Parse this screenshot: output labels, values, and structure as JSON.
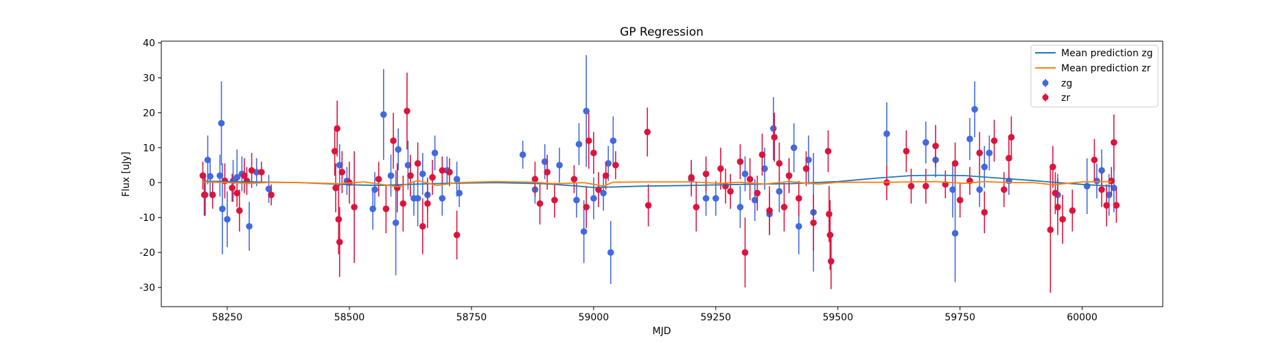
{
  "chart_data": {
    "type": "scatter",
    "title": "GP Regression",
    "xlabel": "MJD",
    "ylabel": "Flux [uJy]",
    "xlim": [
      58115,
      60165
    ],
    "ylim": [
      -35.5,
      40.5
    ],
    "xticks": [
      58250,
      58500,
      58750,
      59000,
      59250,
      59500,
      59750,
      60000
    ],
    "yticks": [
      -30,
      -20,
      -10,
      0,
      10,
      20,
      30,
      40
    ],
    "grid": false,
    "legend_position": "top-right",
    "legend": [
      "Mean prediction zg",
      "Mean prediction zr",
      "zg",
      "zr"
    ],
    "colors": {
      "mean_zg": "#1f77b4",
      "mean_zr": "#ff7f0e",
      "zg": "#4169e1",
      "zr": "#dc143c"
    },
    "lines": [
      {
        "name": "Mean prediction zg",
        "points": [
          [
            58200,
            0.4
          ],
          [
            58300,
            0.2
          ],
          [
            58400,
            0.0
          ],
          [
            58500,
            -0.6
          ],
          [
            58560,
            -0.8
          ],
          [
            58620,
            -0.5
          ],
          [
            58700,
            -0.2
          ],
          [
            58800,
            0.0
          ],
          [
            58900,
            -0.3
          ],
          [
            58960,
            -0.9
          ],
          [
            59000,
            -1.4
          ],
          [
            59100,
            -1.0
          ],
          [
            59200,
            -0.8
          ],
          [
            59300,
            -0.5
          ],
          [
            59400,
            -0.3
          ],
          [
            59500,
            0.3
          ],
          [
            59580,
            1.3
          ],
          [
            59650,
            2.0
          ],
          [
            59700,
            2.1
          ],
          [
            59760,
            2.0
          ],
          [
            59820,
            1.4
          ],
          [
            59900,
            0.6
          ],
          [
            59950,
            0.0
          ],
          [
            60000,
            -0.5
          ],
          [
            60060,
            -1.0
          ]
        ]
      },
      {
        "name": "Mean prediction zr",
        "points": [
          [
            58200,
            0.2
          ],
          [
            58250,
            0.0
          ],
          [
            58300,
            -0.2
          ],
          [
            58340,
            0.1
          ],
          [
            58400,
            0.0
          ],
          [
            58480,
            -0.3
          ],
          [
            58530,
            0.2
          ],
          [
            58600,
            -1.2
          ],
          [
            58640,
            0.6
          ],
          [
            58680,
            -0.8
          ],
          [
            58720,
            0.0
          ],
          [
            58800,
            0.3
          ],
          [
            58880,
            0.1
          ],
          [
            58920,
            -0.3
          ],
          [
            58980,
            0.0
          ],
          [
            59020,
            -1.0
          ],
          [
            59040,
            0.1
          ],
          [
            59100,
            0.2
          ],
          [
            59200,
            0.2
          ],
          [
            59260,
            -0.2
          ],
          [
            59300,
            0.1
          ],
          [
            59350,
            -0.4
          ],
          [
            59400,
            0.3
          ],
          [
            59460,
            -0.4
          ],
          [
            59500,
            0.1
          ],
          [
            59600,
            0.1
          ],
          [
            59700,
            0.3
          ],
          [
            59760,
            -0.2
          ],
          [
            59800,
            0.3
          ],
          [
            59850,
            0.0
          ],
          [
            59900,
            0.0
          ],
          [
            59940,
            -0.6
          ],
          [
            60000,
            0.2
          ],
          [
            60060,
            0.3
          ]
        ]
      }
    ],
    "series": [
      {
        "name": "zg",
        "points": [
          [
            58205,
            -3.5,
            6.0
          ],
          [
            58210,
            6.5,
            7.0
          ],
          [
            58215,
            1.8,
            5.0
          ],
          [
            58235,
            2.0,
            6.0
          ],
          [
            58238,
            17.0,
            12.0
          ],
          [
            58240,
            -7.5,
            13.0
          ],
          [
            58250,
            -10.5,
            8.0
          ],
          [
            58262,
            0.5,
            6.0
          ],
          [
            58270,
            1.5,
            8.0
          ],
          [
            58280,
            2.5,
            5.0
          ],
          [
            58295,
            -12.5,
            7.0
          ],
          [
            58310,
            3.0,
            4.0
          ],
          [
            58335,
            -1.8,
            4.0
          ],
          [
            58480,
            5.0,
            6.0
          ],
          [
            58495,
            0.5,
            4.0
          ],
          [
            58548,
            -7.5,
            6.0
          ],
          [
            58552,
            -2.0,
            5.0
          ],
          [
            58570,
            19.5,
            13.0
          ],
          [
            58585,
            2.0,
            6.0
          ],
          [
            58595,
            -11.5,
            15.0
          ],
          [
            58600,
            9.5,
            6.0
          ],
          [
            58620,
            5.0,
            7.0
          ],
          [
            58632,
            -4.5,
            5.0
          ],
          [
            58640,
            -4.5,
            8.0
          ],
          [
            58650,
            2.5,
            6.0
          ],
          [
            58660,
            -3.5,
            5.0
          ],
          [
            58675,
            8.5,
            5.0
          ],
          [
            58690,
            -4.5,
            5.0
          ],
          [
            58700,
            3.5,
            4.0
          ],
          [
            58720,
            1.0,
            5.0
          ],
          [
            58725,
            -3.0,
            4.0
          ],
          [
            58855,
            8.0,
            4.0
          ],
          [
            58880,
            -2.0,
            4.0
          ],
          [
            58900,
            6.0,
            5.0
          ],
          [
            58930,
            5.0,
            5.0
          ],
          [
            58965,
            -5.0,
            5.0
          ],
          [
            58970,
            11.0,
            6.0
          ],
          [
            58980,
            -14.0,
            9.0
          ],
          [
            58985,
            20.5,
            16.0
          ],
          [
            59000,
            -4.5,
            6.0
          ],
          [
            59020,
            -3.0,
            5.0
          ],
          [
            59030,
            5.5,
            5.0
          ],
          [
            59035,
            -20.0,
            9.0
          ],
          [
            59040,
            12.0,
            7.0
          ],
          [
            59200,
            1.0,
            5.0
          ],
          [
            59230,
            -4.5,
            5.0
          ],
          [
            59250,
            -4.5,
            5.0
          ],
          [
            59300,
            -7.0,
            6.0
          ],
          [
            59310,
            2.5,
            5.0
          ],
          [
            59330,
            -5.0,
            6.0
          ],
          [
            59350,
            4.0,
            6.0
          ],
          [
            59360,
            -9.0,
            6.0
          ],
          [
            59368,
            15.5,
            9.0
          ],
          [
            59380,
            -2.5,
            6.0
          ],
          [
            59400,
            2.0,
            5.0
          ],
          [
            59410,
            10.0,
            7.0
          ],
          [
            59420,
            -12.5,
            8.0
          ],
          [
            59440,
            6.5,
            7.0
          ],
          [
            59450,
            -8.5,
            17.0
          ],
          [
            59600,
            14.0,
            9.0
          ],
          [
            59680,
            11.5,
            6.0
          ],
          [
            59700,
            6.5,
            5.0
          ],
          [
            59735,
            -2.0,
            8.0
          ],
          [
            59740,
            -14.5,
            14.0
          ],
          [
            59770,
            12.5,
            6.0
          ],
          [
            59780,
            21.0,
            8.0
          ],
          [
            59790,
            -2.0,
            5.0
          ],
          [
            59800,
            4.5,
            6.0
          ],
          [
            59810,
            8.5,
            5.0
          ],
          [
            59850,
            0.5,
            4.0
          ],
          [
            59950,
            -3.5,
            6.0
          ],
          [
            60010,
            -1.0,
            8.0
          ],
          [
            60030,
            0.5,
            5.0
          ],
          [
            60040,
            3.5,
            6.0
          ],
          [
            60055,
            -3.5,
            6.0
          ],
          [
            60065,
            -1.5,
            7.0
          ]
        ]
      },
      {
        "name": "zr",
        "points": [
          [
            58200,
            2.0,
            4.0
          ],
          [
            58203,
            -3.5,
            6.0
          ],
          [
            58220,
            -3.5,
            4.0
          ],
          [
            58245,
            0.5,
            5.0
          ],
          [
            58260,
            -1.5,
            4.0
          ],
          [
            58270,
            -3.0,
            4.0
          ],
          [
            58275,
            -8.0,
            6.0
          ],
          [
            58285,
            2.0,
            5.0
          ],
          [
            58290,
            0.5,
            4.0
          ],
          [
            58300,
            3.5,
            5.0
          ],
          [
            58320,
            3.0,
            3.0
          ],
          [
            58340,
            -3.5,
            3.0
          ],
          [
            58470,
            9.0,
            7.0
          ],
          [
            58472,
            -1.5,
            7.0
          ],
          [
            58475,
            15.5,
            8.0
          ],
          [
            58478,
            -10.5,
            10.0
          ],
          [
            58480,
            -17.0,
            10.0
          ],
          [
            58485,
            3.0,
            6.0
          ],
          [
            58500,
            0.0,
            6.0
          ],
          [
            58510,
            -7.0,
            16.0
          ],
          [
            58560,
            1.0,
            5.0
          ],
          [
            58575,
            -7.5,
            7.0
          ],
          [
            58590,
            12.0,
            8.0
          ],
          [
            58598,
            -1.5,
            7.0
          ],
          [
            58610,
            -6.0,
            8.0
          ],
          [
            58618,
            20.5,
            11.0
          ],
          [
            58625,
            2.0,
            6.0
          ],
          [
            58640,
            5.5,
            6.0
          ],
          [
            58650,
            -12.5,
            8.0
          ],
          [
            58660,
            -6.0,
            7.0
          ],
          [
            58670,
            1.5,
            5.0
          ],
          [
            58690,
            3.5,
            4.0
          ],
          [
            58705,
            3.0,
            4.0
          ],
          [
            58720,
            -15.0,
            7.0
          ],
          [
            58880,
            1.0,
            5.0
          ],
          [
            58890,
            -6.0,
            6.0
          ],
          [
            58905,
            3.0,
            5.0
          ],
          [
            58920,
            -5.0,
            5.0
          ],
          [
            58960,
            1.0,
            4.0
          ],
          [
            58985,
            -7.0,
            6.0
          ],
          [
            58990,
            12.0,
            8.0
          ],
          [
            59000,
            8.5,
            6.0
          ],
          [
            59010,
            -2.0,
            5.0
          ],
          [
            59025,
            2.0,
            4.0
          ],
          [
            59045,
            5.0,
            4.0
          ],
          [
            59110,
            14.5,
            7.0
          ],
          [
            59112,
            -6.5,
            6.0
          ],
          [
            59200,
            1.5,
            5.0
          ],
          [
            59210,
            -7.0,
            7.0
          ],
          [
            59230,
            2.5,
            5.0
          ],
          [
            59260,
            4.0,
            6.0
          ],
          [
            59270,
            -1.0,
            5.0
          ],
          [
            59280,
            -2.5,
            5.0
          ],
          [
            59300,
            6.0,
            5.0
          ],
          [
            59310,
            -20.0,
            10.0
          ],
          [
            59320,
            1.0,
            6.0
          ],
          [
            59335,
            -3.0,
            5.0
          ],
          [
            59345,
            8.0,
            6.0
          ],
          [
            59360,
            -8.0,
            7.0
          ],
          [
            59370,
            13.0,
            7.0
          ],
          [
            59380,
            5.5,
            6.0
          ],
          [
            59390,
            -7.0,
            7.0
          ],
          [
            59400,
            2.0,
            5.0
          ],
          [
            59420,
            -4.5,
            5.0
          ],
          [
            59435,
            4.0,
            5.0
          ],
          [
            59450,
            -11.5,
            8.0
          ],
          [
            59480,
            9.0,
            6.0
          ],
          [
            59482,
            -9.0,
            8.0
          ],
          [
            59484,
            -15.0,
            10.0
          ],
          [
            59486,
            -22.5,
            8.0
          ],
          [
            59600,
            0.0,
            5.0
          ],
          [
            59640,
            9.0,
            6.0
          ],
          [
            59650,
            -1.0,
            5.0
          ],
          [
            59680,
            -1.0,
            5.0
          ],
          [
            59700,
            10.5,
            6.0
          ],
          [
            59720,
            -0.5,
            4.0
          ],
          [
            59740,
            5.5,
            6.0
          ],
          [
            59750,
            -5.0,
            5.0
          ],
          [
            59770,
            0.5,
            4.0
          ],
          [
            59790,
            8.5,
            6.0
          ],
          [
            59800,
            -8.5,
            6.0
          ],
          [
            59820,
            12.0,
            6.0
          ],
          [
            59840,
            -2.0,
            5.0
          ],
          [
            59850,
            7.0,
            6.0
          ],
          [
            59855,
            13.0,
            6.0
          ],
          [
            59935,
            -13.5,
            18.0
          ],
          [
            59940,
            4.5,
            6.0
          ],
          [
            59945,
            -3.0,
            6.0
          ],
          [
            59950,
            -7.0,
            8.0
          ],
          [
            59960,
            -10.5,
            7.0
          ],
          [
            59980,
            -8.0,
            6.0
          ],
          [
            60025,
            6.5,
            6.0
          ],
          [
            60040,
            -2.0,
            5.0
          ],
          [
            60050,
            -6.5,
            6.0
          ],
          [
            60060,
            0.5,
            4.0
          ],
          [
            60065,
            11.5,
            8.0
          ],
          [
            60070,
            -6.5,
            5.0
          ]
        ]
      }
    ]
  }
}
